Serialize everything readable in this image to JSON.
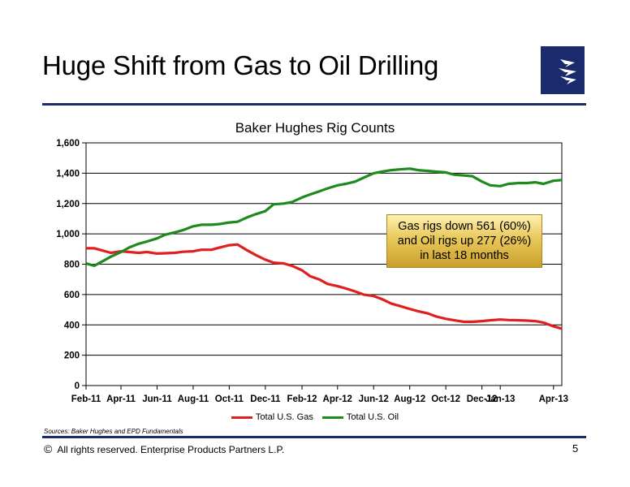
{
  "slide": {
    "title": "Huge Shift from Gas to Oil Drilling",
    "logo_icon": "enterprise-lightning-logo",
    "brand_color": "#1a2a6c",
    "sources": "Sources:  Baker Hughes and EPD Fundamentals",
    "copyright_symbol": "©",
    "footer_text": "All rights reserved. Enterprise Products Partners L.P.",
    "page_number": "5"
  },
  "callout": {
    "line1": "Gas rigs down 561 (60%)",
    "line2": "and Oil rigs up 277 (26%)",
    "line3": "in last 18 months"
  },
  "chart_data": {
    "type": "line",
    "title": "Baker Hughes Rig Counts",
    "xlabel": "",
    "ylabel": "",
    "ylim": [
      0,
      1600
    ],
    "yticks": [
      0,
      200,
      400,
      600,
      800,
      1000,
      1200,
      1400,
      1600
    ],
    "ytick_labels": [
      "0",
      "200",
      "400",
      "600",
      "800",
      "1,000",
      "1,200",
      "1,400",
      "1,600"
    ],
    "xlim": [
      "2011-02-01",
      "2013-04-15"
    ],
    "xticks": [
      {
        "date": "2011-02-01",
        "label": "Feb-11"
      },
      {
        "date": "2011-04-01",
        "label": "Apr-11"
      },
      {
        "date": "2011-06-01",
        "label": "Jun-11"
      },
      {
        "date": "2011-08-01",
        "label": "Aug-11"
      },
      {
        "date": "2011-10-01",
        "label": "Oct-11"
      },
      {
        "date": "2011-12-01",
        "label": "Dec-11"
      },
      {
        "date": "2012-02-01",
        "label": "Feb-12"
      },
      {
        "date": "2012-04-01",
        "label": "Apr-12"
      },
      {
        "date": "2012-06-01",
        "label": "Jun-12"
      },
      {
        "date": "2012-08-01",
        "label": "Aug-12"
      },
      {
        "date": "2012-10-01",
        "label": "Oct-12"
      },
      {
        "date": "2012-12-01",
        "label": "Dec-12"
      },
      {
        "date": "2013-01-01",
        "label": "Jan-13"
      },
      {
        "date": "2013-04-01",
        "label": "Apr-13"
      }
    ],
    "grid": true,
    "legend": "bottom",
    "series": [
      {
        "name": "Total U.S. Gas",
        "color": "#e02020",
        "points": [
          [
            "2011-02-01",
            905
          ],
          [
            "2011-02-15",
            905
          ],
          [
            "2011-03-01",
            890
          ],
          [
            "2011-03-15",
            875
          ],
          [
            "2011-04-01",
            885
          ],
          [
            "2011-04-15",
            880
          ],
          [
            "2011-05-01",
            875
          ],
          [
            "2011-05-15",
            880
          ],
          [
            "2011-06-01",
            870
          ],
          [
            "2011-06-15",
            872
          ],
          [
            "2011-07-01",
            875
          ],
          [
            "2011-07-15",
            882
          ],
          [
            "2011-08-01",
            885
          ],
          [
            "2011-08-15",
            895
          ],
          [
            "2011-09-01",
            895
          ],
          [
            "2011-09-15",
            910
          ],
          [
            "2011-10-01",
            925
          ],
          [
            "2011-10-15",
            930
          ],
          [
            "2011-11-01",
            890
          ],
          [
            "2011-11-15",
            860
          ],
          [
            "2011-12-01",
            830
          ],
          [
            "2011-12-15",
            810
          ],
          [
            "2012-01-01",
            805
          ],
          [
            "2012-01-15",
            790
          ],
          [
            "2012-02-01",
            760
          ],
          [
            "2012-02-15",
            720
          ],
          [
            "2012-03-01",
            700
          ],
          [
            "2012-03-15",
            670
          ],
          [
            "2012-04-01",
            655
          ],
          [
            "2012-04-15",
            640
          ],
          [
            "2012-05-01",
            620
          ],
          [
            "2012-05-15",
            600
          ],
          [
            "2012-06-01",
            590
          ],
          [
            "2012-06-15",
            570
          ],
          [
            "2012-07-01",
            540
          ],
          [
            "2012-07-15",
            525
          ],
          [
            "2012-08-01",
            505
          ],
          [
            "2012-08-15",
            490
          ],
          [
            "2012-09-01",
            475
          ],
          [
            "2012-09-15",
            455
          ],
          [
            "2012-10-01",
            440
          ],
          [
            "2012-10-15",
            430
          ],
          [
            "2012-11-01",
            420
          ],
          [
            "2012-11-15",
            420
          ],
          [
            "2012-12-01",
            425
          ],
          [
            "2012-12-15",
            430
          ],
          [
            "2013-01-01",
            435
          ],
          [
            "2013-01-15",
            432
          ],
          [
            "2013-02-01",
            430
          ],
          [
            "2013-02-15",
            428
          ],
          [
            "2013-03-01",
            425
          ],
          [
            "2013-03-15",
            415
          ],
          [
            "2013-04-01",
            390
          ],
          [
            "2013-04-15",
            375
          ]
        ]
      },
      {
        "name": "Total U.S. Oil",
        "color": "#1e8a1e",
        "points": [
          [
            "2011-02-01",
            805
          ],
          [
            "2011-02-15",
            790
          ],
          [
            "2011-03-01",
            820
          ],
          [
            "2011-03-15",
            850
          ],
          [
            "2011-04-01",
            880
          ],
          [
            "2011-04-15",
            910
          ],
          [
            "2011-05-01",
            935
          ],
          [
            "2011-05-15",
            950
          ],
          [
            "2011-06-01",
            970
          ],
          [
            "2011-06-15",
            995
          ],
          [
            "2011-07-01",
            1010
          ],
          [
            "2011-07-15",
            1025
          ],
          [
            "2011-08-01",
            1050
          ],
          [
            "2011-08-15",
            1060
          ],
          [
            "2011-09-01",
            1060
          ],
          [
            "2011-09-15",
            1065
          ],
          [
            "2011-10-01",
            1075
          ],
          [
            "2011-10-15",
            1080
          ],
          [
            "2011-11-01",
            1110
          ],
          [
            "2011-11-15",
            1130
          ],
          [
            "2011-12-01",
            1150
          ],
          [
            "2011-12-15",
            1195
          ],
          [
            "2012-01-01",
            1200
          ],
          [
            "2012-01-15",
            1210
          ],
          [
            "2012-02-01",
            1240
          ],
          [
            "2012-02-15",
            1260
          ],
          [
            "2012-03-01",
            1280
          ],
          [
            "2012-03-15",
            1300
          ],
          [
            "2012-04-01",
            1320
          ],
          [
            "2012-04-15",
            1330
          ],
          [
            "2012-05-01",
            1345
          ],
          [
            "2012-05-15",
            1370
          ],
          [
            "2012-06-01",
            1400
          ],
          [
            "2012-06-15",
            1410
          ],
          [
            "2012-07-01",
            1420
          ],
          [
            "2012-07-15",
            1425
          ],
          [
            "2012-08-01",
            1430
          ],
          [
            "2012-08-15",
            1420
          ],
          [
            "2012-09-01",
            1415
          ],
          [
            "2012-09-15",
            1410
          ],
          [
            "2012-10-01",
            1405
          ],
          [
            "2012-10-15",
            1390
          ],
          [
            "2012-11-01",
            1385
          ],
          [
            "2012-11-15",
            1380
          ],
          [
            "2012-12-01",
            1345
          ],
          [
            "2012-12-15",
            1320
          ],
          [
            "2013-01-01",
            1315
          ],
          [
            "2013-01-15",
            1330
          ],
          [
            "2013-02-01",
            1335
          ],
          [
            "2013-02-15",
            1335
          ],
          [
            "2013-03-01",
            1340
          ],
          [
            "2013-03-15",
            1330
          ],
          [
            "2013-04-01",
            1350
          ],
          [
            "2013-04-15",
            1355
          ]
        ]
      }
    ]
  }
}
